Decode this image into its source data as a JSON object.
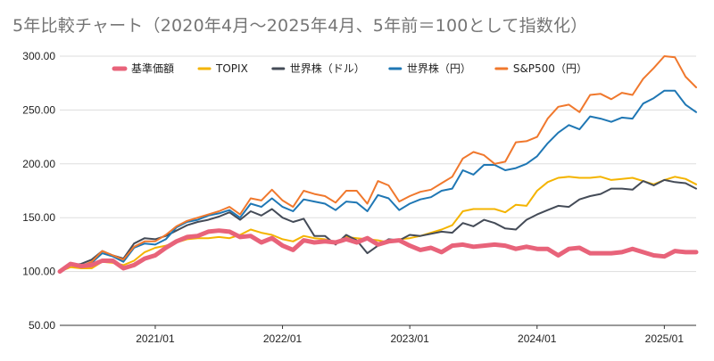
{
  "chart_data": {
    "type": "line",
    "title": "5年比較チャート（2020年4月〜2025年4月、5年前＝100として指数化）",
    "xlabel": "",
    "ylabel": "",
    "ylim": [
      50,
      300
    ],
    "y_ticks": [
      "50.00",
      "100.00",
      "150.00",
      "200.00",
      "250.00",
      "300.00"
    ],
    "x_ticks": [
      "2021/01",
      "2022/01",
      "2023/01",
      "2024/01",
      "2025/01"
    ],
    "x_start": "2020/04",
    "x_end": "2025/04",
    "grid": "horizontal",
    "legend_position": "top",
    "x": [
      "2020/04",
      "2020/05",
      "2020/06",
      "2020/07",
      "2020/08",
      "2020/09",
      "2020/10",
      "2020/11",
      "2020/12",
      "2021/01",
      "2021/02",
      "2021/03",
      "2021/04",
      "2021/05",
      "2021/06",
      "2021/07",
      "2021/08",
      "2021/09",
      "2021/10",
      "2021/11",
      "2021/12",
      "2022/01",
      "2022/02",
      "2022/03",
      "2022/04",
      "2022/05",
      "2022/06",
      "2022/07",
      "2022/08",
      "2022/09",
      "2022/10",
      "2022/11",
      "2022/12",
      "2023/01",
      "2023/02",
      "2023/03",
      "2023/04",
      "2023/05",
      "2023/06",
      "2023/07",
      "2023/08",
      "2023/09",
      "2023/10",
      "2023/11",
      "2023/12",
      "2024/01",
      "2024/02",
      "2024/03",
      "2024/04",
      "2024/05",
      "2024/06",
      "2024/07",
      "2024/08",
      "2024/09",
      "2024/10",
      "2024/11",
      "2024/12",
      "2025/01",
      "2025/02",
      "2025/03",
      "2025/04"
    ],
    "series": [
      {
        "name": "基準価額",
        "color": "#e8637a",
        "values": [
          100,
          107,
          105,
          106,
          110,
          110,
          103,
          106,
          112,
          115,
          122,
          128,
          132,
          133,
          137,
          138,
          137,
          132,
          133,
          127,
          131,
          124,
          120,
          129,
          127,
          128,
          127,
          130,
          127,
          131,
          125,
          128,
          129,
          124,
          120,
          122,
          118,
          124,
          125,
          123,
          124,
          125,
          124,
          121,
          123,
          121,
          121,
          115,
          121,
          122,
          117,
          117,
          117,
          118,
          121,
          118,
          115,
          114,
          119,
          118,
          118
        ]
      },
      {
        "name": "TOPIX",
        "color": "#f4b400",
        "values": [
          100,
          104,
          103,
          103,
          109,
          108,
          106,
          110,
          118,
          122,
          124,
          127,
          130,
          131,
          131,
          132,
          131,
          134,
          139,
          136,
          134,
          130,
          128,
          133,
          131,
          130,
          127,
          132,
          131,
          130,
          129,
          127,
          130,
          131,
          133,
          136,
          139,
          143,
          156,
          158,
          158,
          158,
          155,
          162,
          161,
          175,
          183,
          187,
          188,
          187,
          187,
          188,
          185,
          186,
          187,
          184,
          181,
          185,
          188,
          186,
          181
        ]
      },
      {
        "name": "世界株（ドル）",
        "color": "#444b57",
        "values": [
          100,
          106,
          107,
          111,
          119,
          115,
          112,
          126,
          131,
          130,
          133,
          138,
          143,
          146,
          148,
          151,
          155,
          148,
          156,
          152,
          158,
          150,
          146,
          149,
          133,
          133,
          125,
          134,
          129,
          117,
          124,
          130,
          129,
          134,
          133,
          135,
          137,
          136,
          145,
          142,
          148,
          145,
          140,
          139,
          148,
          153,
          157,
          161,
          160,
          167,
          170,
          172,
          177,
          177,
          176,
          184,
          180,
          185,
          183,
          182,
          177
        ]
      },
      {
        "name": "世界株（円）",
        "color": "#1f77b4",
        "values": [
          100,
          106,
          105,
          108,
          117,
          114,
          109,
          122,
          126,
          125,
          130,
          141,
          146,
          148,
          152,
          154,
          157,
          150,
          163,
          160,
          168,
          160,
          156,
          167,
          165,
          163,
          157,
          165,
          164,
          156,
          171,
          168,
          157,
          163,
          167,
          169,
          175,
          177,
          194,
          190,
          199,
          199,
          194,
          196,
          200,
          207,
          219,
          229,
          236,
          232,
          244,
          242,
          239,
          243,
          242,
          256,
          261,
          268,
          268,
          255,
          248
        ]
      },
      {
        "name": "S&P500（円）",
        "color": "#f0782d",
        "values": [
          100,
          106,
          105,
          109,
          119,
          115,
          111,
          123,
          128,
          128,
          134,
          142,
          147,
          150,
          153,
          156,
          160,
          153,
          168,
          166,
          176,
          166,
          160,
          175,
          172,
          170,
          164,
          175,
          175,
          163,
          184,
          180,
          165,
          170,
          174,
          176,
          182,
          188,
          205,
          211,
          208,
          200,
          202,
          220,
          221,
          225,
          242,
          253,
          255,
          248,
          264,
          265,
          260,
          266,
          264,
          279,
          289,
          300,
          299,
          281,
          271
        ]
      }
    ]
  }
}
